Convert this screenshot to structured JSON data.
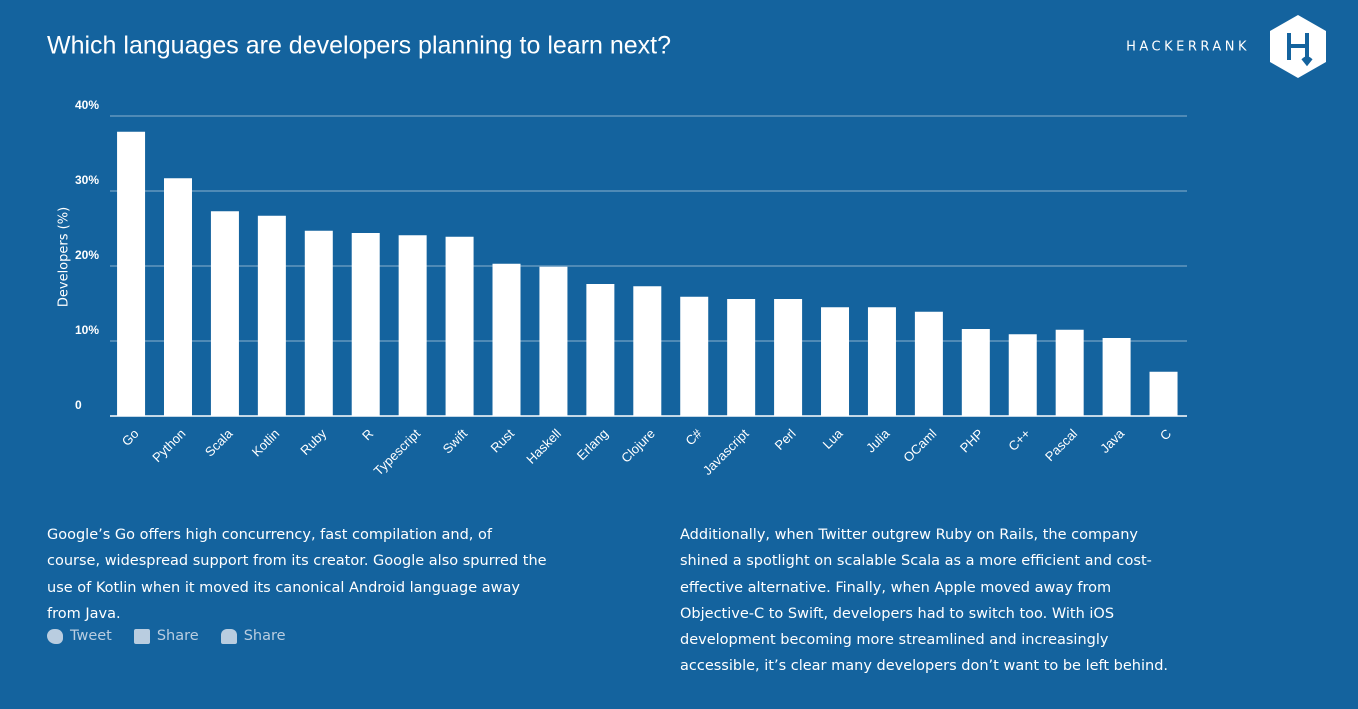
{
  "header": {
    "brand": "HACKERRANK"
  },
  "chart_data": {
    "type": "bar",
    "title": "Which languages are developers planning to learn next?",
    "y_label": "Developers (%)",
    "categories": [
      "Go",
      "Python",
      "Scala",
      "Kotlin",
      "Ruby",
      "R",
      "Typescript",
      "Swift",
      "Rust",
      "Haskell",
      "Erlang",
      "Clojure",
      "C#",
      "Javascript",
      "Perl",
      "Lua",
      "Julia",
      "OCaml",
      "PHP",
      "C++",
      "Pascal",
      "Java",
      "C"
    ],
    "values": [
      37.9,
      31.7,
      27.3,
      26.7,
      24.7,
      24.4,
      24.1,
      23.9,
      20.3,
      19.9,
      17.6,
      17.3,
      15.9,
      15.6,
      15.6,
      14.5,
      14.5,
      13.9,
      11.6,
      10.9,
      11.5,
      10.4,
      5.9
    ],
    "color": "#ffffff",
    "ylim": [
      0,
      40
    ],
    "yticks": [
      0,
      {
        "value": 10,
        "label": "10%"
      },
      {
        "value": 20,
        "label": "20%"
      },
      {
        "value": 30,
        "label": "30%"
      },
      {
        "value": 40,
        "label": "40%"
      }
    ],
    "grid": true
  },
  "text": {
    "left": "Google’s Go offers high concurrency, fast compilation and, of course, widespread support from its creator. Google also spurred the use of Kotlin when it moved its canonical Android language away from Java.",
    "right": "Additionally, when Twitter outgrew Ruby on Rails, the company shined a spotlight on scalable Scala as a more efficient and cost-effective alternative. Finally, when Apple moved away from Objective-C to Swift, developers had to switch too. With iOS development becoming more streamlined and increasingly accessible, it’s clear many developers don’t want to be left behind.",
    "share": [
      "Tweet",
      "Share",
      "Share"
    ]
  }
}
